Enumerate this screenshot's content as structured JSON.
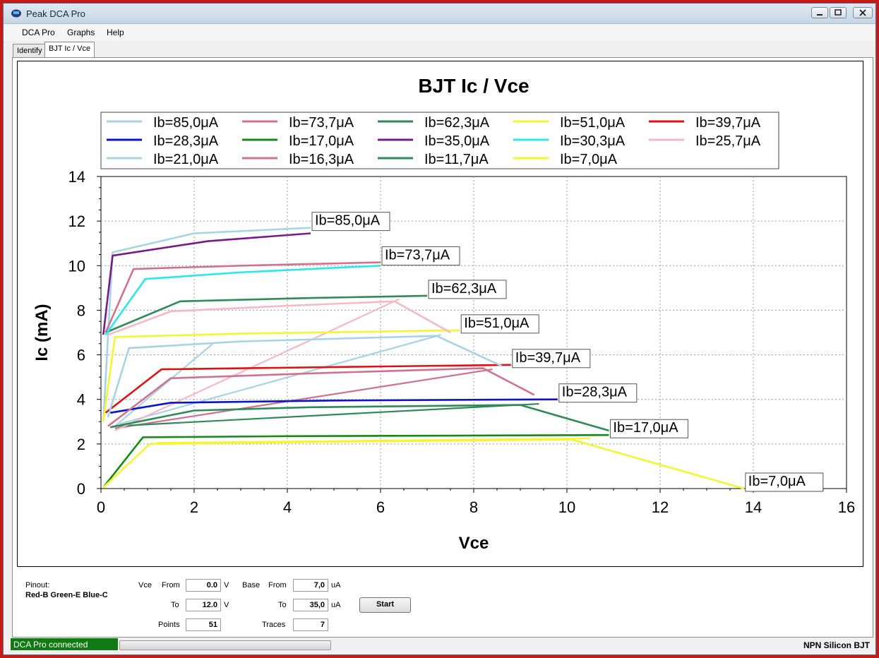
{
  "window": {
    "title": "Peak DCA Pro"
  },
  "menu": [
    "DCA Pro",
    "Graphs",
    "Help"
  ],
  "tabs": [
    "Identify",
    "BJT Ic / Vce"
  ],
  "chart_data": {
    "type": "line",
    "title": "BJT Ic / Vce",
    "xlabel": "Vce",
    "ylabel": "Ic (mA)",
    "xlim": [
      0,
      16
    ],
    "ylim": [
      0,
      14
    ],
    "xticks": [
      "0",
      "2",
      "4",
      "6",
      "8",
      "10",
      "12",
      "14",
      "16"
    ],
    "yticks": [
      "0",
      "2",
      "4",
      "6",
      "8",
      "10",
      "12",
      "14"
    ],
    "grid": true,
    "legend_position": "top",
    "series": [
      {
        "name": "Ib=85,0μA",
        "color": "#a7d3e6",
        "x": [
          0.05,
          0.25,
          2.0,
          4.5
        ],
        "y": [
          3.0,
          10.6,
          11.45,
          11.7
        ],
        "label": "Ib=85,0μA"
      },
      {
        "name": "Ib=73,7μA",
        "color": "#d2708f",
        "x": [
          0.1,
          0.7,
          3.0,
          6.0
        ],
        "y": [
          7.0,
          9.85,
          10.0,
          10.15
        ],
        "label": "Ib=73,7μA"
      },
      {
        "name": "Ib=62,3μA",
        "color": "#2e8b57",
        "x": [
          0.1,
          1.7,
          4.5,
          7.0
        ],
        "y": [
          7.0,
          8.4,
          8.55,
          8.65
        ],
        "label": "Ib=62,3μA"
      },
      {
        "name": "Ib=51,0μA",
        "color": "#f5f530",
        "x": [
          0.05,
          0.3,
          3.0,
          7.7
        ],
        "y": [
          3.0,
          6.8,
          6.95,
          7.1
        ],
        "label": "Ib=51,0μA"
      },
      {
        "name": "Ib=39,7μA",
        "color": "#e01010",
        "x": [
          0.1,
          1.3,
          5.0,
          8.8
        ],
        "y": [
          3.4,
          5.35,
          5.45,
          5.55
        ],
        "label": "Ib=39,7μA"
      },
      {
        "name": "Ib=28,3μA",
        "color": "#0a14c8",
        "x": [
          0.2,
          1.5,
          5.0,
          9.8
        ],
        "y": [
          3.4,
          3.85,
          3.95,
          4.0
        ],
        "label": "Ib=28,3μA"
      },
      {
        "name": "Ib=17,0μA",
        "color": "#138a13",
        "x": [
          0.05,
          0.9,
          4.0,
          10.9
        ],
        "y": [
          0.05,
          2.3,
          2.35,
          2.4
        ],
        "label": "Ib=17,0μA"
      },
      {
        "name": "Ib=35,0μA",
        "color": "#7a1a8a",
        "x": [
          0.05,
          0.25,
          2.3,
          4.5
        ],
        "y": [
          6.9,
          10.45,
          11.1,
          11.45
        ]
      },
      {
        "name": "Ib=30,3μA",
        "color": "#28e8ee",
        "x": [
          0.1,
          0.95,
          3.0,
          6.0
        ],
        "y": [
          6.9,
          9.4,
          9.7,
          10.0
        ]
      },
      {
        "name": "Ib=25,7μA",
        "color": "#f5b8c4",
        "x": [
          0.15,
          1.5,
          4.0,
          6.3,
          7.5
        ],
        "y": [
          6.9,
          7.95,
          8.2,
          8.4,
          7.0
        ]
      },
      {
        "name": "Ib=21,0μA",
        "color": "#a7d3e6",
        "x": [
          0.15,
          0.6,
          3.0,
          7.2,
          8.6
        ],
        "y": [
          3.2,
          6.3,
          6.6,
          6.85,
          5.5
        ]
      },
      {
        "name": "Ib=16,3μA",
        "color": "#d2708f",
        "x": [
          0.15,
          1.5,
          5.0,
          8.2,
          9.3
        ],
        "y": [
          2.8,
          4.95,
          5.2,
          5.4,
          4.2
        ]
      },
      {
        "name": "Ib=11,7μA",
        "color": "#2e8b57",
        "x": [
          0.2,
          2.0,
          4.5,
          9.0,
          10.9
        ],
        "y": [
          2.75,
          3.5,
          3.65,
          3.75,
          2.6
        ]
      },
      {
        "name": "Ib=7,0μA",
        "color": "#f5f530",
        "x": [
          0.05,
          1.05,
          5.0,
          10.1,
          13.8
        ],
        "y": [
          0.05,
          2.0,
          2.1,
          2.2,
          0.0
        ],
        "label": "Ib=7,0μA"
      }
    ],
    "extra_lines": [
      {
        "color": "#a7d3e6",
        "x": [
          0.3,
          2.4
        ],
        "y": [
          2.8,
          6.5
        ]
      },
      {
        "color": "#a7d3e6",
        "x": [
          0.4,
          7.3
        ],
        "y": [
          2.9,
          6.9
        ]
      },
      {
        "color": "#d2708f",
        "x": [
          0.3,
          8.4
        ],
        "y": [
          2.7,
          5.35
        ]
      },
      {
        "color": "#2e8b57",
        "x": [
          0.3,
          9.4
        ],
        "y": [
          2.8,
          3.8
        ]
      },
      {
        "color": "#f5b8c4",
        "x": [
          0.3,
          6.4
        ],
        "y": [
          2.6,
          8.5
        ]
      },
      {
        "color": "#f5f530",
        "x": [
          1.2,
          10.5
        ],
        "y": [
          2.05,
          2.25
        ]
      }
    ]
  },
  "controls": {
    "pinout_label": "Pinout:",
    "pinout_value": "Red-B Green-E Blue-C",
    "vce_label": "Vce",
    "vce_from_label": "From",
    "vce_from_value": "0.0",
    "vce_from_unit": "V",
    "vce_to_label": "To",
    "vce_to_value": "12.0",
    "vce_to_unit": "V",
    "points_label": "Points",
    "points_value": "51",
    "base_label": "Base",
    "base_from_label": "From",
    "base_from_value": "7,0",
    "base_from_unit": "uA",
    "base_to_label": "To",
    "base_to_value": "35,0",
    "base_to_unit": "uA",
    "traces_label": "Traces",
    "traces_value": "7",
    "start_label": "Start"
  },
  "status": {
    "connection": "DCA Pro connected",
    "device": "NPN Silicon BJT"
  }
}
